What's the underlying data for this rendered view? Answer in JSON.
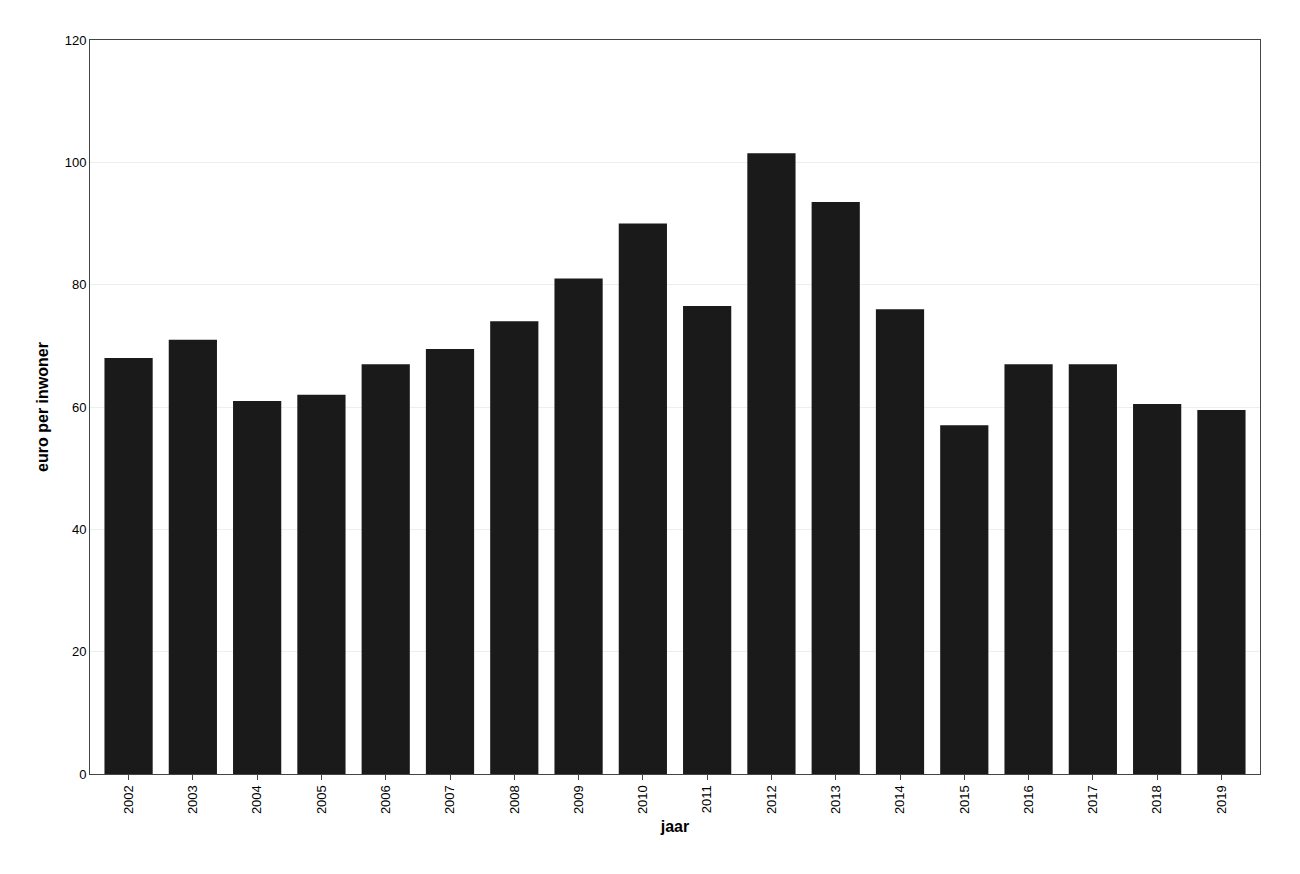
{
  "chart_data": {
    "type": "bar",
    "categories": [
      "2002",
      "2003",
      "2004",
      "2005",
      "2006",
      "2007",
      "2008",
      "2009",
      "2010",
      "2011",
      "2012",
      "2013",
      "2014",
      "2015",
      "2016",
      "2017",
      "2018",
      "2019"
    ],
    "values": [
      68,
      71,
      61,
      62,
      67,
      69.5,
      74,
      81,
      90,
      76.5,
      101.5,
      93.5,
      76,
      57,
      67,
      67,
      60.5,
      59.5
    ],
    "color": "#1a1a1a",
    "xlabel": "jaar",
    "ylabel": "euro per inwoner",
    "ylim": [
      0,
      120
    ],
    "yticks": [
      0,
      20,
      40,
      60,
      80,
      100,
      120
    ],
    "grid": true
  }
}
